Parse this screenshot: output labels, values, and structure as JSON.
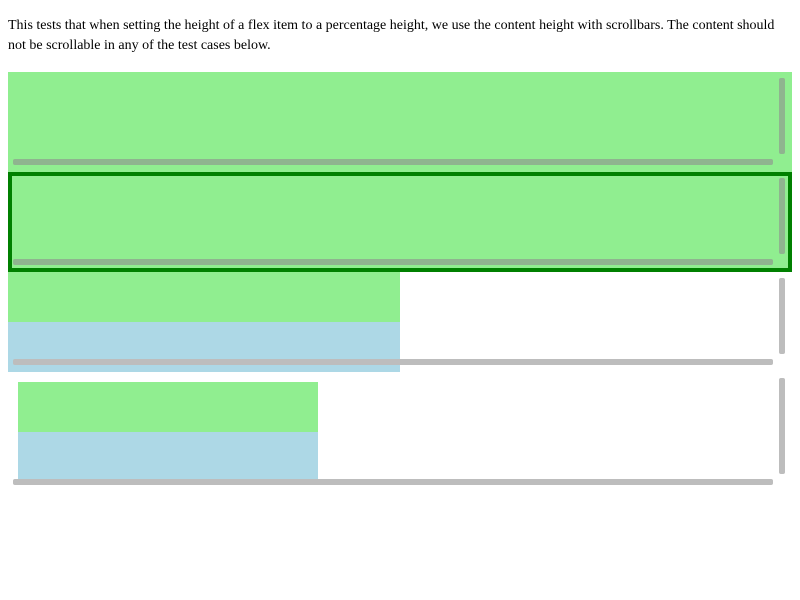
{
  "description": "This tests that when setting the height of a flex item to a percentage height, we use the content height with scrollbars. The content should not be scrollable in any of the test cases below.",
  "colors": {
    "green_item": "#90ee90",
    "blue_item": "#add8e6",
    "border_green": "#008000",
    "scrollbar_on_green": "#8fb48f",
    "scrollbar_on_white": "#bdbdbd",
    "background": "#ffffff"
  },
  "test_cases": [
    {
      "id": 1,
      "bordered": false,
      "items": [
        "green"
      ]
    },
    {
      "id": 2,
      "bordered": true,
      "items": [
        "green"
      ]
    },
    {
      "id": 3,
      "bordered": false,
      "items": [
        "green",
        "blue"
      ]
    },
    {
      "id": 4,
      "bordered": false,
      "items": [
        "green",
        "blue"
      ]
    }
  ]
}
